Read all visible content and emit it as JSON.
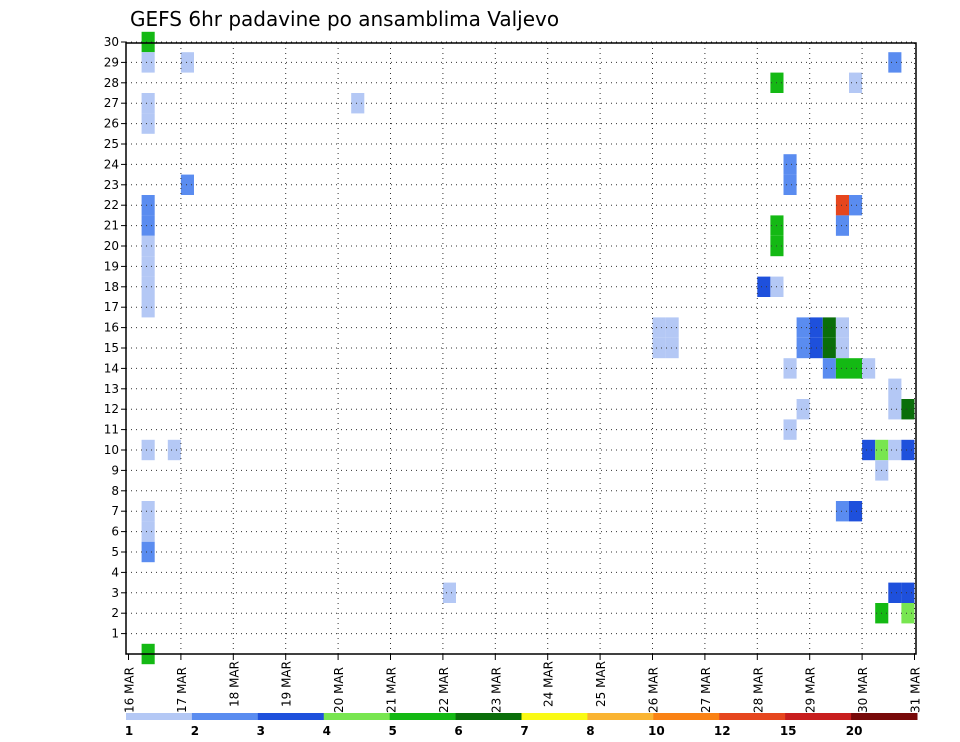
{
  "chart_data": {
    "type": "heatmap",
    "title": "GEFS 6hr padavine po ansamblima Valjevo",
    "x_ticks": [
      "16 MAR",
      "17 MAR",
      "18 MAR",
      "19 MAR",
      "20 MAR",
      "21 MAR",
      "22 MAR",
      "23 MAR",
      "24 MAR",
      "25 MAR",
      "26 MAR",
      "27 MAR",
      "28 MAR",
      "29 MAR",
      "30 MAR",
      "31 MAR"
    ],
    "x_ticks_offset": [
      "16 MAR",
      "17 MAR",
      "20 MAR",
      "21 MAR",
      "22 MAR",
      "23 MAR",
      "26 MAR",
      "27 MAR",
      "28 MAR",
      "29 MAR",
      "30 MAR",
      "31 MAR"
    ],
    "x_ticks_aligned": [
      "18 MAR",
      "19 MAR",
      "24 MAR",
      "25 MAR"
    ],
    "y_ticks": [
      1,
      2,
      3,
      4,
      5,
      6,
      7,
      8,
      9,
      10,
      11,
      12,
      13,
      14,
      15,
      16,
      17,
      18,
      19,
      20,
      21,
      22,
      23,
      24,
      25,
      26,
      27,
      28,
      29,
      30
    ],
    "ylim": [
      0,
      30
    ],
    "grid": true,
    "colorbar": {
      "labels": [
        "1",
        "2",
        "3",
        "4",
        "5",
        "6",
        "7",
        "8",
        "10",
        "12",
        "15",
        "20"
      ],
      "colors": [
        "#b4c8f5",
        "#5a8cf0",
        "#1e50dc",
        "#78e650",
        "#14b914",
        "#0a6e0a",
        "#fafa14",
        "#fab432",
        "#fa8214",
        "#e6461e",
        "#c81e1e",
        "#780a0a"
      ]
    },
    "columns": {
      "start": "16 MAR 00Z",
      "step_hours": 6,
      "count": 60
    },
    "cells": [
      {
        "t": 2,
        "m": 30,
        "v": 5
      },
      {
        "t": 2,
        "m": 29,
        "v": 1
      },
      {
        "t": 5,
        "m": 29,
        "v": 1
      },
      {
        "t": 59,
        "m": 29,
        "v": 2
      },
      {
        "t": 50,
        "m": 28,
        "v": 5
      },
      {
        "t": 56,
        "m": 28,
        "v": 1
      },
      {
        "t": 2,
        "m": 27,
        "v": 1
      },
      {
        "t": 2,
        "m": 26,
        "v": 1
      },
      {
        "t": 18,
        "m": 27,
        "v": 1
      },
      {
        "t": 51,
        "m": 24,
        "v": 2
      },
      {
        "t": 51,
        "m": 23,
        "v": 2
      },
      {
        "t": 5,
        "m": 23,
        "v": 2
      },
      {
        "t": 2,
        "m": 22,
        "v": 2
      },
      {
        "t": 2,
        "m": 21,
        "v": 2
      },
      {
        "t": 2,
        "m": 20,
        "v": 1
      },
      {
        "t": 2,
        "m": 19,
        "v": 1
      },
      {
        "t": 55,
        "m": 22,
        "v": 10
      },
      {
        "t": 56,
        "m": 22,
        "v": 2
      },
      {
        "t": 55,
        "m": 21,
        "v": 2
      },
      {
        "t": 50,
        "m": 21,
        "v": 5
      },
      {
        "t": 50,
        "m": 20,
        "v": 5
      },
      {
        "t": 2,
        "m": 18,
        "v": 1
      },
      {
        "t": 2,
        "m": 17,
        "v": 1
      },
      {
        "t": 49,
        "m": 18,
        "v": 3
      },
      {
        "t": 50,
        "m": 18,
        "v": 1
      },
      {
        "t": 41,
        "m": 16,
        "v": 1
      },
      {
        "t": 42,
        "m": 16,
        "v": 1
      },
      {
        "t": 52,
        "m": 16,
        "v": 2
      },
      {
        "t": 53,
        "m": 16,
        "v": 3
      },
      {
        "t": 54,
        "m": 16,
        "v": 6
      },
      {
        "t": 55,
        "m": 16,
        "v": 1
      },
      {
        "t": 52,
        "m": 15,
        "v": 2
      },
      {
        "t": 53,
        "m": 15,
        "v": 3
      },
      {
        "t": 54,
        "m": 15,
        "v": 6
      },
      {
        "t": 55,
        "m": 15,
        "v": 1
      },
      {
        "t": 41,
        "m": 15,
        "v": 1
      },
      {
        "t": 42,
        "m": 15,
        "v": 1
      },
      {
        "t": 51,
        "m": 14,
        "v": 1
      },
      {
        "t": 54,
        "m": 14,
        "v": 2
      },
      {
        "t": 55,
        "m": 14,
        "v": 5
      },
      {
        "t": 56,
        "m": 14,
        "v": 5
      },
      {
        "t": 57,
        "m": 14,
        "v": 1
      },
      {
        "t": 59,
        "m": 13,
        "v": 1
      },
      {
        "t": 52,
        "m": 12,
        "v": 1
      },
      {
        "t": 59,
        "m": 12,
        "v": 1
      },
      {
        "t": 60,
        "m": 12,
        "v": 6
      },
      {
        "t": 51,
        "m": 11,
        "v": 1
      },
      {
        "t": 2,
        "m": 10,
        "v": 1
      },
      {
        "t": 4,
        "m": 10,
        "v": 1
      },
      {
        "t": 57,
        "m": 10,
        "v": 3
      },
      {
        "t": 58,
        "m": 10,
        "v": 4
      },
      {
        "t": 59,
        "m": 10,
        "v": 1
      },
      {
        "t": 60,
        "m": 10,
        "v": 3
      },
      {
        "t": 58,
        "m": 9,
        "v": 1
      },
      {
        "t": 2,
        "m": 7,
        "v": 1
      },
      {
        "t": 2,
        "m": 6,
        "v": 1
      },
      {
        "t": 2,
        "m": 5,
        "v": 2
      },
      {
        "t": 55,
        "m": 7,
        "v": 2
      },
      {
        "t": 56,
        "m": 7,
        "v": 3
      },
      {
        "t": 25,
        "m": 3,
        "v": 1
      },
      {
        "t": 59,
        "m": 3,
        "v": 3
      },
      {
        "t": 60,
        "m": 3,
        "v": 3
      },
      {
        "t": 58,
        "m": 2,
        "v": 5
      },
      {
        "t": 60,
        "m": 2,
        "v": 4
      },
      {
        "t": 2,
        "m": 0,
        "v": 5
      }
    ]
  }
}
